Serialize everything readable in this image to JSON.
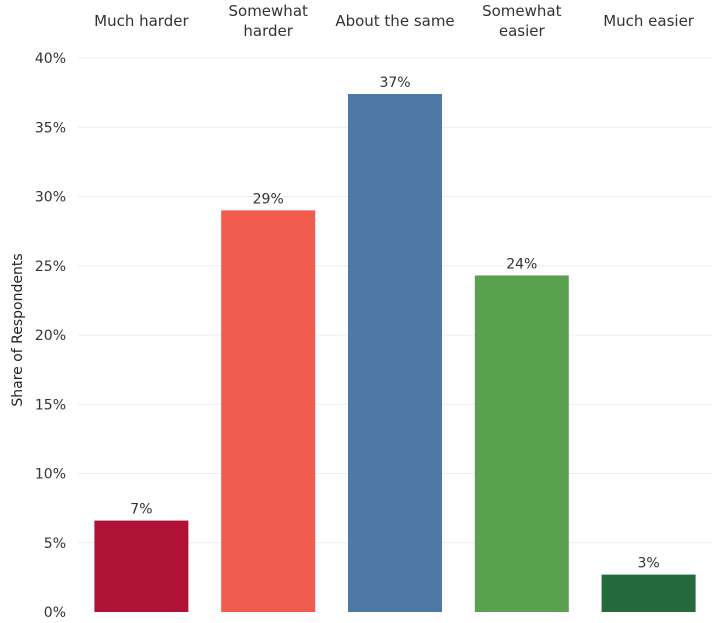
{
  "chart_data": {
    "type": "bar",
    "categories": [
      [
        "Much harder"
      ],
      [
        "Somewhat",
        "harder"
      ],
      [
        "About the same"
      ],
      [
        "Somewhat",
        "easier"
      ],
      [
        "Much easier"
      ]
    ],
    "values": [
      6.6,
      29.0,
      37.4,
      24.3,
      2.7
    ],
    "data_labels": [
      "7%",
      "29%",
      "37%",
      "24%",
      "3%"
    ],
    "colors": [
      "#b01237",
      "#f05c4d",
      "#4e79a7",
      "#59a14f",
      "#256a3c"
    ],
    "ylabel": "Share of Respondents",
    "ylim": [
      0,
      40
    ],
    "yticks": [
      0,
      5,
      10,
      15,
      20,
      25,
      30,
      35,
      40
    ],
    "ytick_labels": [
      "0%",
      "5%",
      "10%",
      "15%",
      "20%",
      "25%",
      "30%",
      "35%",
      "40%"
    ],
    "category_labels_position": "top",
    "grid": true,
    "legend": "none"
  }
}
